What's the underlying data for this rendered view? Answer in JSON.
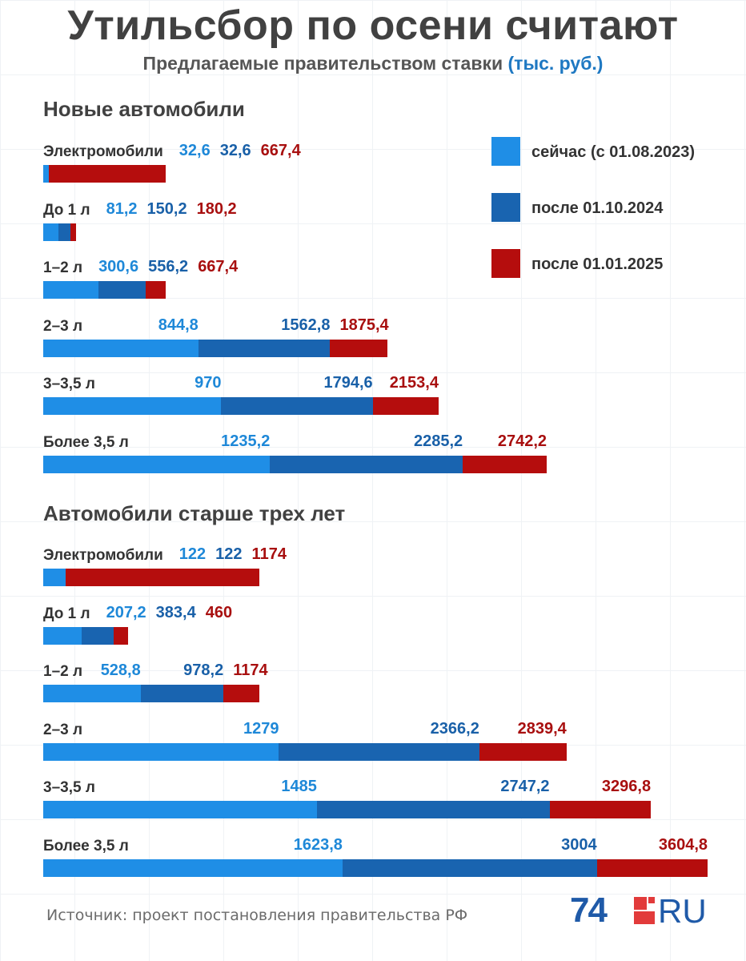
{
  "header": {
    "title": "Утильсбор по осени считают",
    "subtitle": "Предлагаемые правительством ставки",
    "unit": "(тыс. руб.)"
  },
  "legend": [
    {
      "label": "сейчас (с 01.08.2023)",
      "color": "#1f8ee6"
    },
    {
      "label": "после 01.10.2024",
      "color": "#1964b0"
    },
    {
      "label": "после 01.01.2025",
      "color": "#b50d0d"
    }
  ],
  "label_colors": [
    "#1e88d8",
    "#1960a8",
    "#a80f0f"
  ],
  "chart_data": [
    {
      "type": "bar",
      "stacked": "cumulative",
      "title": "Новые автомобили",
      "categories": [
        "Электромобили",
        "До 1 л",
        "1–2 л",
        "2–3 л",
        "3–3,5 л",
        "Более 3,5 л"
      ],
      "series": [
        {
          "name": "сейчас (с 01.08.2023)",
          "values": [
            32.6,
            81.2,
            300.6,
            844.8,
            970,
            1235.2
          ],
          "labels": [
            "32,6",
            "81,2",
            "300,6",
            "844,8",
            "970",
            "1235,2"
          ]
        },
        {
          "name": "после 01.10.2024",
          "values": [
            32.6,
            150.2,
            556.2,
            1562.8,
            1794.6,
            2285.2
          ],
          "labels": [
            "32,6",
            "150,2",
            "556,2",
            "1562,8",
            "1794,6",
            "2285,2"
          ]
        },
        {
          "name": "после 01.01.2025",
          "values": [
            667.4,
            180.2,
            667.4,
            1875.4,
            2153.4,
            2742.2
          ],
          "labels": [
            "667,4",
            "180,2",
            "667,4",
            "1875,4",
            "2153,4",
            "2742,2"
          ]
        }
      ]
    },
    {
      "type": "bar",
      "stacked": "cumulative",
      "title": "Автомобили старше трех лет",
      "categories": [
        "Электромобили",
        "До 1 л",
        "1–2 л",
        "2–3 л",
        "3–3,5 л",
        "Более 3,5 л"
      ],
      "series": [
        {
          "name": "сейчас (с 01.08.2023)",
          "values": [
            122,
            207.2,
            528.8,
            1279,
            1485,
            1623.8
          ],
          "labels": [
            "122",
            "207,2",
            "528,8",
            "1279",
            "1485",
            "1623,8"
          ]
        },
        {
          "name": "после 01.10.2024",
          "values": [
            122,
            383.4,
            978.2,
            2366.2,
            2747.2,
            3004
          ],
          "labels": [
            "122",
            "383,4",
            "978,2",
            "2366,2",
            "2747,2",
            "3004"
          ]
        },
        {
          "name": "после 01.01.2025",
          "values": [
            1174,
            460,
            1174,
            2839.4,
            3296.8,
            3604.8
          ],
          "labels": [
            "1174",
            "460",
            "1174",
            "2839,4",
            "3296,8",
            "3604,8"
          ]
        }
      ]
    }
  ],
  "footer": {
    "source": "Источник: проект постановления правительства РФ",
    "logo_number": "74",
    "logo_suffix": "RU"
  }
}
